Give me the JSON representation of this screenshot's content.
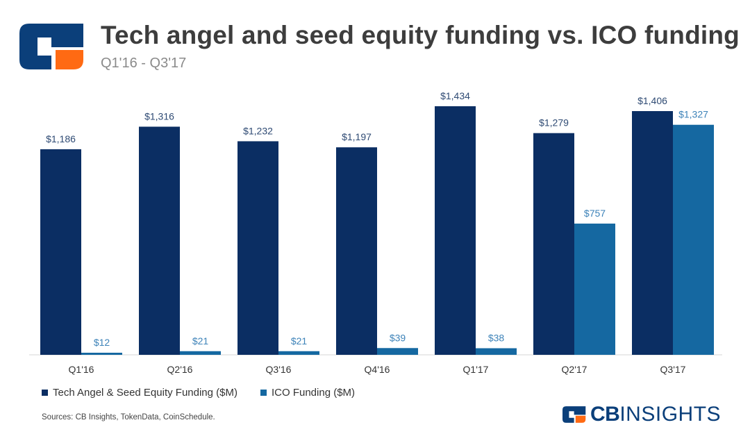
{
  "header": {
    "title": "Tech angel and seed equity funding vs. ICO funding",
    "subtitle": "Q1'16 - Q3'17"
  },
  "legend": {
    "series1": "Tech Angel & Seed Equity Funding ($M)",
    "series2": "ICO Funding ($M)"
  },
  "footer": {
    "source": "Sources: CB Insights, TokenData, CoinSchedule.",
    "brand_bold": "CB",
    "brand_light": "INSIGHTS"
  },
  "colors": {
    "series1": "#0b2e63",
    "series2": "#1568a1",
    "label1": "#2e4a73",
    "label2": "#3c82b8",
    "logo_orange": "#ff6a13"
  },
  "chart_data": {
    "type": "bar",
    "title": "Tech angel and seed equity funding vs. ICO funding",
    "subtitle": "Q1'16 - Q3'17",
    "xlabel": "",
    "ylabel": "",
    "ylim": [
      0,
      1434
    ],
    "grid": false,
    "legend_position": "bottom-left",
    "categories": [
      "Q1'16",
      "Q2'16",
      "Q3'16",
      "Q4'16",
      "Q1'17",
      "Q2'17",
      "Q3'17"
    ],
    "series": [
      {
        "name": "Tech Angel & Seed Equity Funding ($M)",
        "values": [
          1186,
          1316,
          1232,
          1197,
          1434,
          1279,
          1406
        ],
        "labels": [
          "$1,186",
          "$1,316",
          "$1,232",
          "$1,197",
          "$1,434",
          "$1,279",
          "$1,406"
        ]
      },
      {
        "name": "ICO Funding ($M)",
        "values": [
          12,
          21,
          21,
          39,
          38,
          757,
          1327
        ],
        "labels": [
          "$12",
          "$21",
          "$21",
          "$39",
          "$38",
          "$757",
          "$1,327"
        ]
      }
    ]
  }
}
